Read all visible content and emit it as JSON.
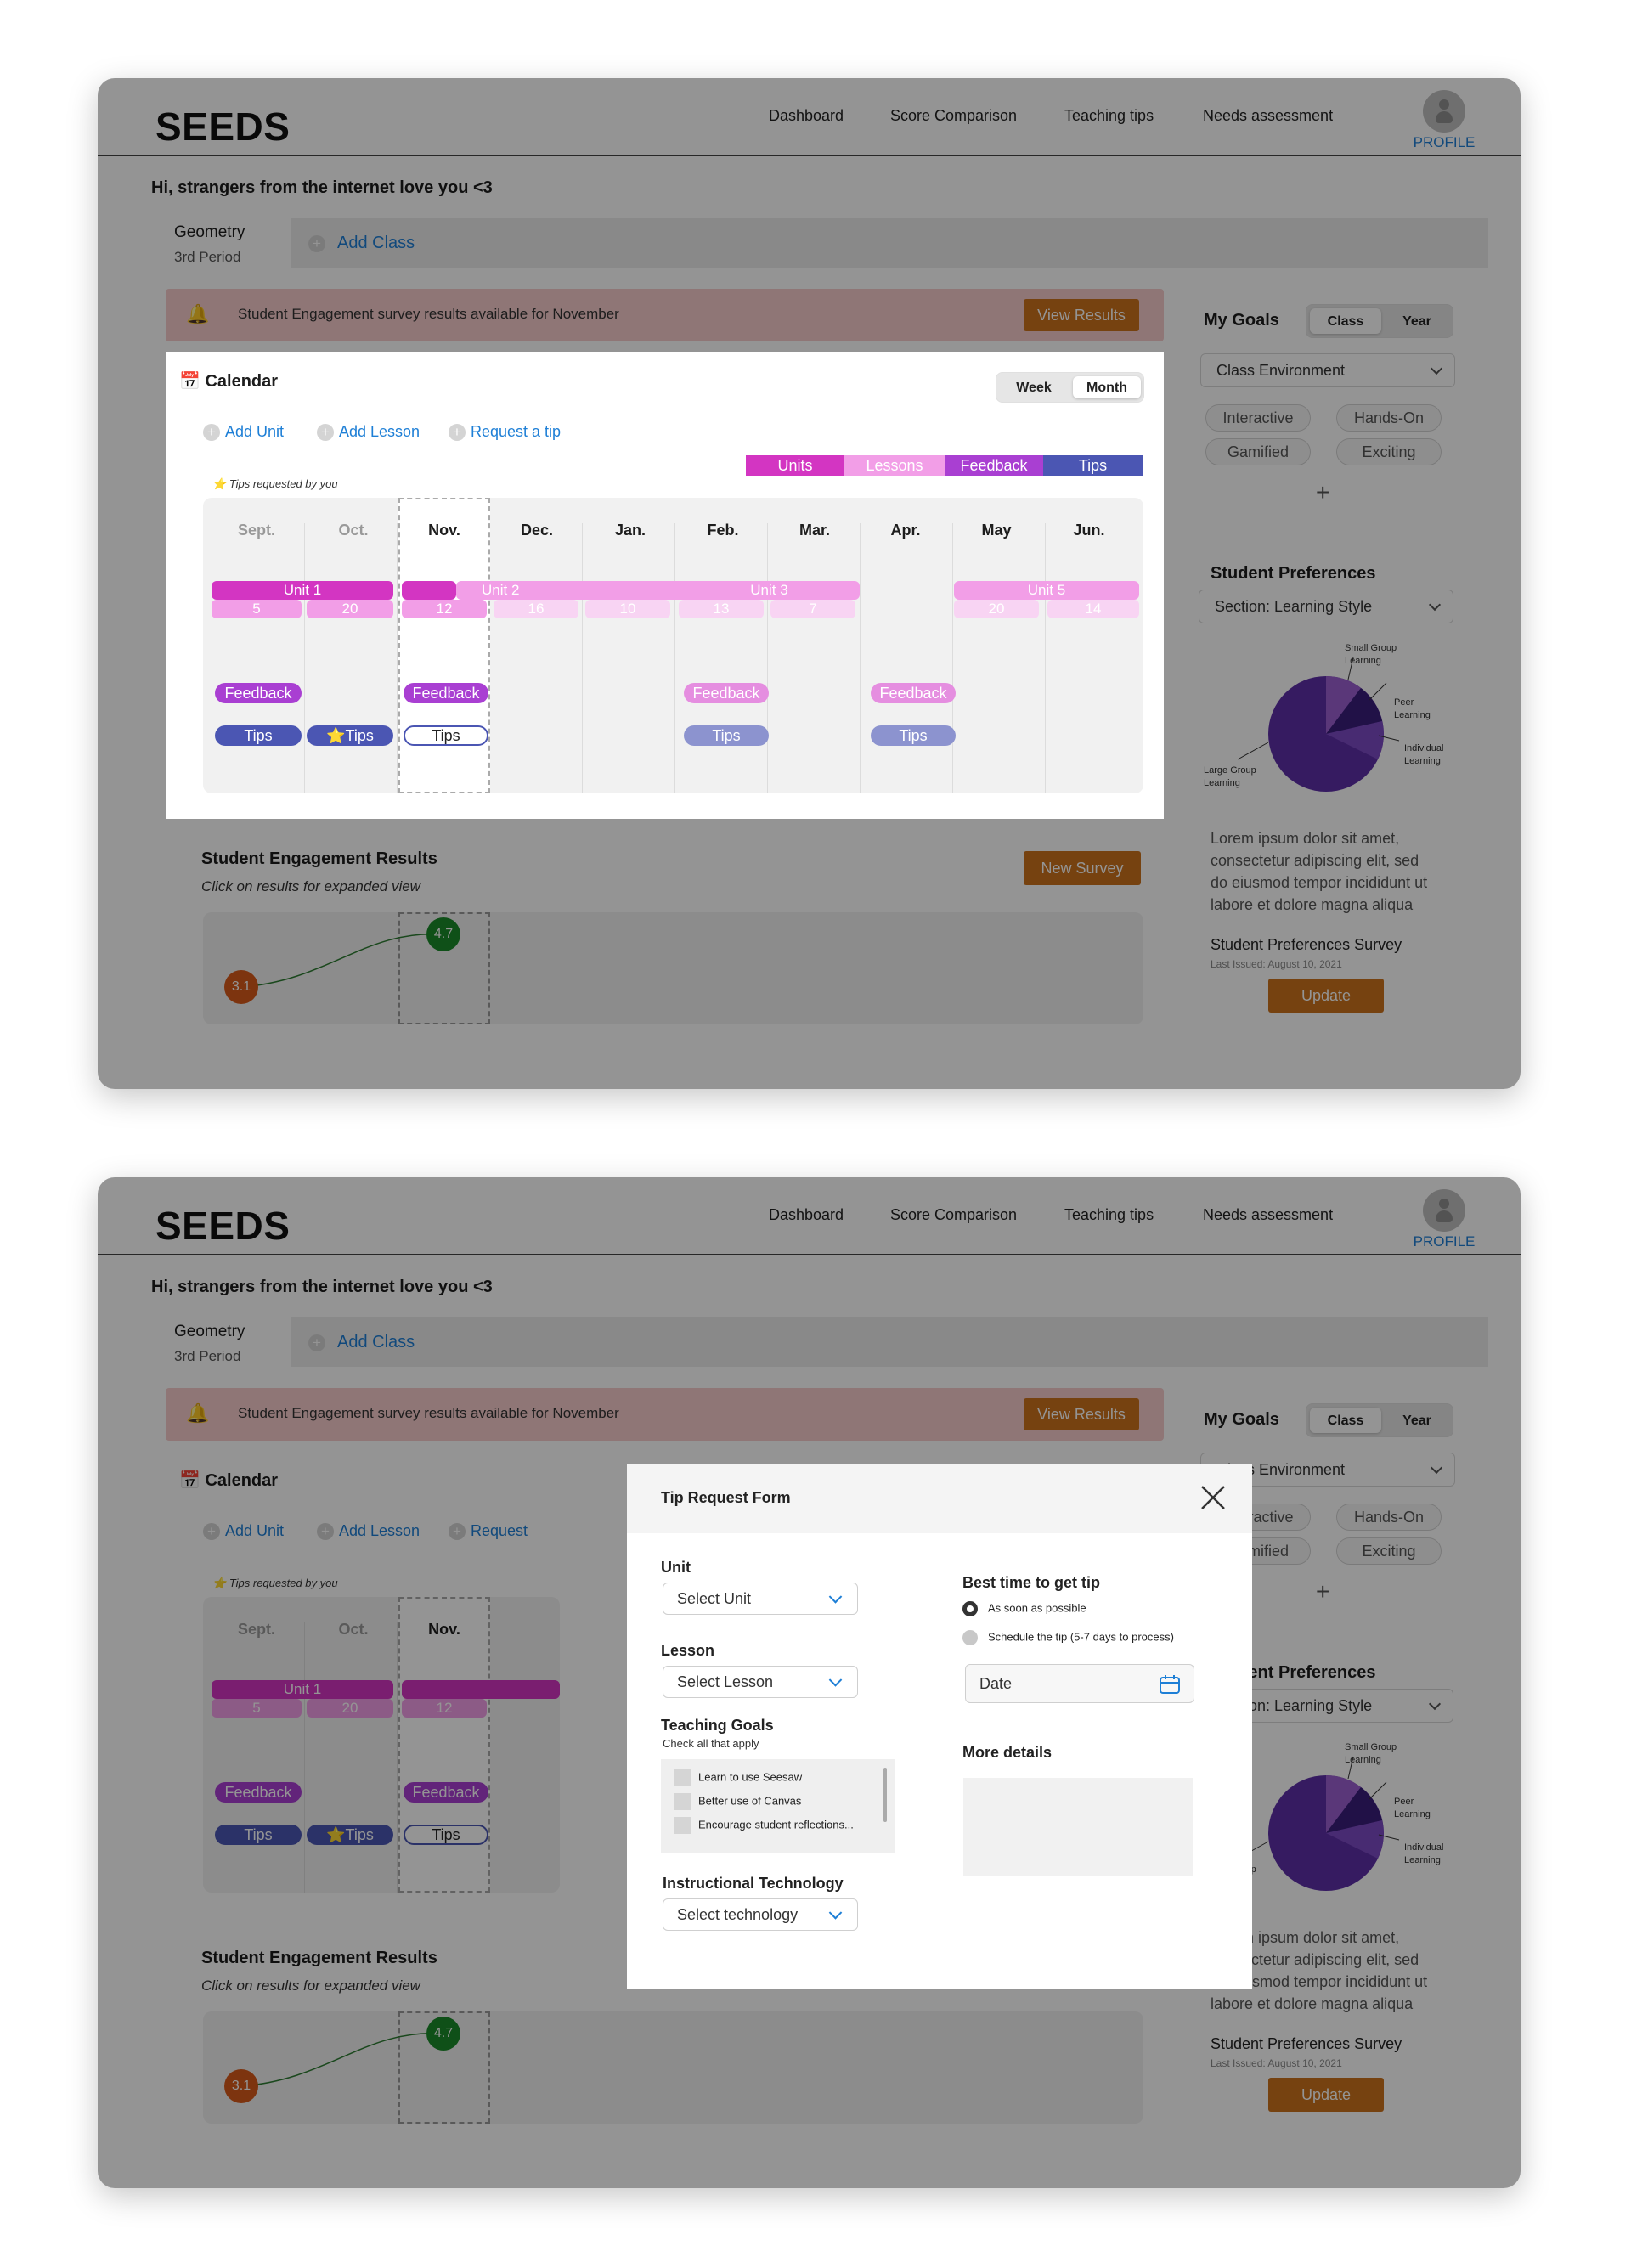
{
  "app": {
    "logo": "SEEDS"
  },
  "nav": {
    "items": [
      "Dashboard",
      "Score Comparison",
      "Teaching tips",
      "Needs assessment"
    ],
    "profile": "PROFILE"
  },
  "greeting": "Hi, strangers from the internet love you <3",
  "class_tabs": {
    "active_name": "Geometry",
    "active_period": "3rd Period",
    "add_label": "Add Class"
  },
  "notification": {
    "text": "Student Engagement survey results available for November",
    "button": "View Results",
    "icon": "bell-icon"
  },
  "calendar": {
    "title": "Calendar",
    "icon": "calendar-icon",
    "view_toggle": {
      "week": "Week",
      "month": "Month",
      "selected": "Month"
    },
    "actions": [
      "Add Unit",
      "Add Lesson",
      "Request a tip"
    ],
    "legend": [
      {
        "label": "Units",
        "color": "#d335c2"
      },
      {
        "label": "Lessons",
        "color": "#f29ee7"
      },
      {
        "label": "Feedback",
        "color": "#a93fd2"
      },
      {
        "label": "Tips",
        "color": "#4b56b3"
      }
    ],
    "tips_note": "Tips requested by you",
    "months": [
      "Sept.",
      "Oct.",
      "Nov.",
      "Dec.",
      "Jan.",
      "Feb.",
      "Mar.",
      "Apr.",
      "May",
      "Jun."
    ],
    "units": [
      "Unit 1",
      "Unit 2",
      "Unit 3",
      "Unit 5"
    ],
    "lesson_counts": [
      "5",
      "20",
      "12",
      "16",
      "10",
      "13",
      "7",
      "20",
      "14"
    ],
    "feedback_label": "Feedback",
    "tips_label": "Tips",
    "tips_starred_label": "⭐Tips"
  },
  "engagement": {
    "title": "Student Engagement Results",
    "subtitle": "Click on results for expanded view",
    "button": "New Survey",
    "points": [
      "3.1",
      "4.7"
    ]
  },
  "goals": {
    "title": "My Goals",
    "toggle": {
      "class": "Class",
      "year": "Year",
      "selected": "Class"
    },
    "select": "Class Environment",
    "chips": [
      "Interactive",
      "Hands-On",
      "Gamified",
      "Exciting"
    ],
    "add": "+"
  },
  "preferences": {
    "title": "Student Preferences",
    "select": "Section: Learning Style",
    "pie_labels": {
      "small_group": [
        "Small Group",
        "Learning"
      ],
      "peer": [
        "Peer",
        "Learning"
      ],
      "individual": [
        "Individual",
        "Learning"
      ],
      "large_group": [
        "Large Group",
        "Learning"
      ]
    },
    "lorem": [
      "Lorem ipsum dolor sit amet,",
      "consectetur adipiscing elit, sed",
      "do eiusmod tempor incididunt ut",
      "labore et dolore magna aliqua"
    ],
    "survey_title": "Student Preferences Survey",
    "last_issued": "Last Issued: August 10, 2021",
    "button": "Update"
  },
  "modal": {
    "title": "Tip Request Form",
    "close_icon": "close-icon",
    "unit_label": "Unit",
    "unit_select": "Select Unit",
    "lesson_label": "Lesson",
    "lesson_select": "Select Lesson",
    "goals_label": "Teaching Goals",
    "goals_hint": "Check all that apply",
    "goals_options": [
      "Learn to use Seesaw",
      "Better use of Canvas",
      "Encourage student reflections..."
    ],
    "tech_label": "Instructional Technology",
    "tech_select": "Select technology",
    "time_label": "Best time to get tip",
    "time_options": [
      "As soon as possible",
      "Schedule the tip (5-7 days to process)"
    ],
    "time_selected": "As soon as possible",
    "date_placeholder": "Date",
    "details_label": "More details",
    "background_partial_action": "Request"
  }
}
